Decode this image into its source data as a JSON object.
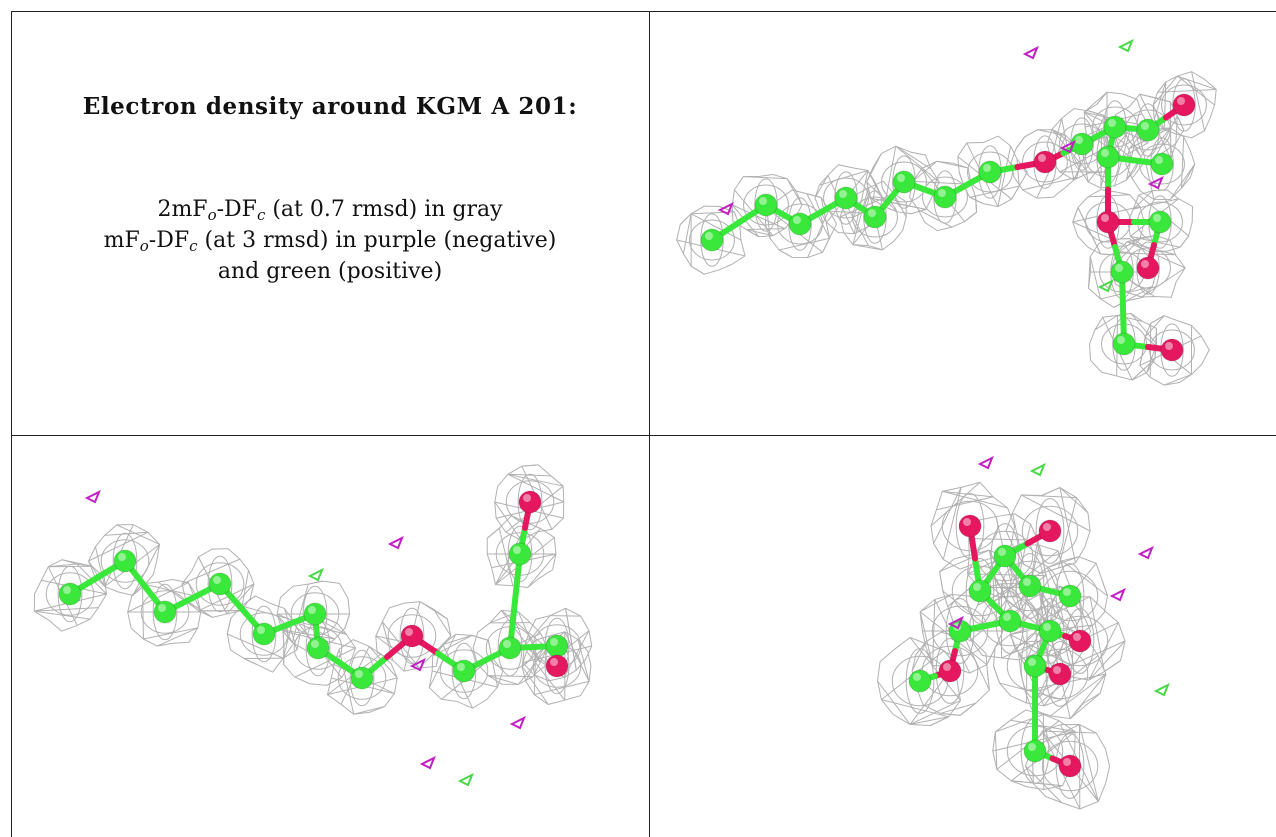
{
  "figure": {
    "heading": "Electron density around KGM A 201:",
    "legend": {
      "line1": {
        "pre": "2mF",
        "sub1": "o",
        "mid": "-DF",
        "sub2": "c",
        "post": " (at 0.7 rmsd) in gray"
      },
      "line2": {
        "pre": "mF",
        "sub1": "o",
        "mid": "-DF",
        "sub2": "c",
        "post": " (at 3 rmsd) in purple (negative)"
      },
      "line3": "and green (positive)"
    },
    "colors": {
      "mesh": "#a9a9a9",
      "carbon": "#39e83a",
      "oxygen": "#e5185f",
      "negative_density": "#c21fc4",
      "positive_density": "#49d84a"
    }
  }
}
